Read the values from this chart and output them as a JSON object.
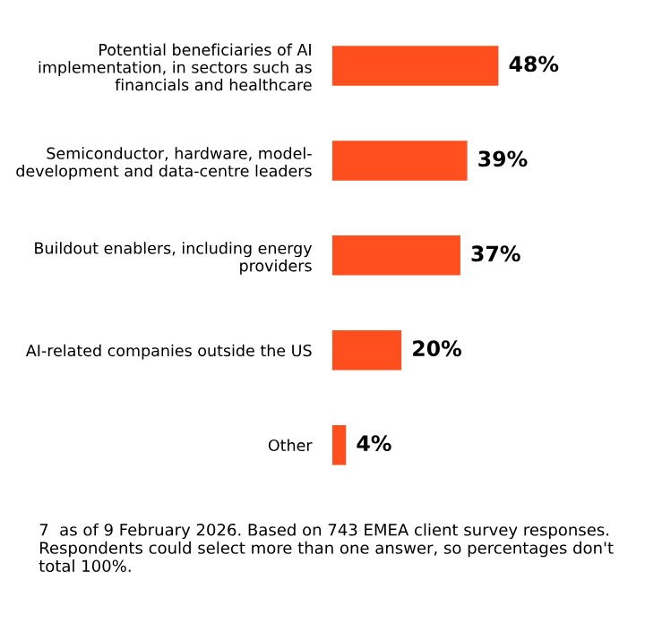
{
  "chart_data": {
    "type": "bar",
    "orientation": "horizontal",
    "categories": [
      "Potential beneficiaries of AI\nimplementation, in sectors such as\nfinancials and healthcare",
      "Semiconductor, hardware, model-\ndevelopment and data-centre leaders",
      "Buildout enablers, including energy\nproviders",
      "AI-related companies outside the US",
      "Other"
    ],
    "values": [
      48,
      39,
      37,
      20,
      4
    ],
    "value_labels": [
      "48%",
      "39%",
      "37%",
      "20%",
      "4%"
    ],
    "color": "#ff4f1f",
    "grid": false,
    "legend": false,
    "annotations": [
      "7  as of 9 February 2026. Based on 743 EMEA client survey responses. Respondents could select more than one answer, so percentages don't total 100%."
    ]
  }
}
